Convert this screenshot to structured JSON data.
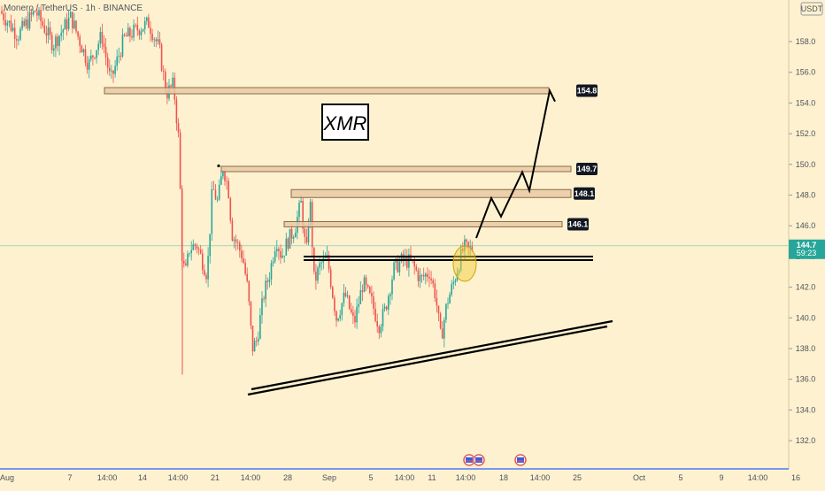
{
  "header": {
    "symbol_title": "Monero / TetherUS · 1h · BINANCE",
    "currency_badge": "USDT"
  },
  "annotation": {
    "label": "XMR"
  },
  "price_badge": {
    "value": "144.7",
    "countdown": "59:23"
  },
  "colors": {
    "background": "#fdf1cf",
    "candle_up": "#26a69a",
    "candle_down": "#ef5350",
    "zone_fill": "#e9c9a4",
    "zone_border": "#8a6a4a",
    "badge_dark": "#131722",
    "badge_green": "#26a69a",
    "axis_blue": "#2962ff",
    "highlight_circle": "#f4d03f"
  },
  "chart_data": {
    "type": "candlestick",
    "y_axis": {
      "min": 130,
      "max": 160,
      "ticks": [
        "158.0",
        "156.0",
        "154.0",
        "152.0",
        "150.0",
        "148.0",
        "146.0",
        "144.0",
        "142.0",
        "140.0",
        "138.0",
        "136.0",
        "134.0",
        "132.0"
      ]
    },
    "x_axis": {
      "ticks": [
        "Aug",
        "7",
        "14:00",
        "14",
        "14:00",
        "21",
        "14:00",
        "28",
        "Sep",
        "5",
        "14:00",
        "11",
        "14:00",
        "18",
        "14:00",
        "25",
        "Oct",
        "5",
        "9",
        "14:00",
        "16"
      ]
    },
    "levels": [
      {
        "label": "154.8",
        "price": 154.8
      },
      {
        "label": "149.7",
        "price": 149.7
      },
      {
        "label": "148.1",
        "price": 148.1
      },
      {
        "label": "146.1",
        "price": 146.1
      }
    ],
    "current_price": 144.7,
    "projection": [
      145.2,
      147.8,
      146.6,
      149.5,
      148.3,
      154.8,
      154.1
    ],
    "trendline_support": [
      135.6,
      139.8
    ]
  }
}
